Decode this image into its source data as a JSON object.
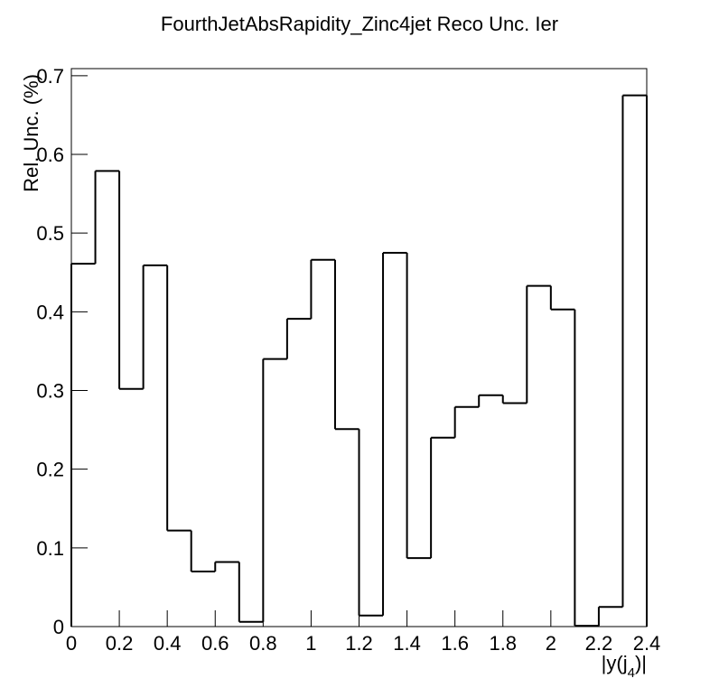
{
  "chart_data": {
    "type": "histogram",
    "title": "FourthJetAbsRapidity_Zinc4jet Reco Unc. Ier",
    "xlabel": [
      "|y(j",
      "4",
      ")|"
    ],
    "ylabel": "Rel. Unc. (%)",
    "bins": [
      0,
      0.1,
      0.2,
      0.3,
      0.4,
      0.5,
      0.6,
      0.7,
      0.8,
      0.9,
      1,
      1.1,
      1.2,
      1.3,
      1.4,
      1.5,
      1.6,
      1.7,
      1.8,
      1.9,
      2,
      2.1,
      2.2,
      2.3,
      2.4
    ],
    "values": [
      0.461,
      0.579,
      0.302,
      0.459,
      0.122,
      0.07,
      0.082,
      0.006,
      0.34,
      0.391,
      0.466,
      0.251,
      0.014,
      0.475,
      0.087,
      0.24,
      0.279,
      0.294,
      0.284,
      0.433,
      0.403,
      0.001,
      0.025,
      0.675
    ],
    "color": "#000000",
    "xlim": [
      0,
      2.4
    ],
    "xticks": [
      0,
      0.2,
      0.4,
      0.6,
      0.8,
      1,
      1.2,
      1.4,
      1.6,
      1.8,
      2,
      2.2,
      2.4
    ],
    "ylim": [
      0,
      0.709
    ],
    "yticks": [
      0,
      0.1,
      0.2,
      0.3,
      0.4,
      0.5,
      0.6,
      0.7
    ]
  }
}
